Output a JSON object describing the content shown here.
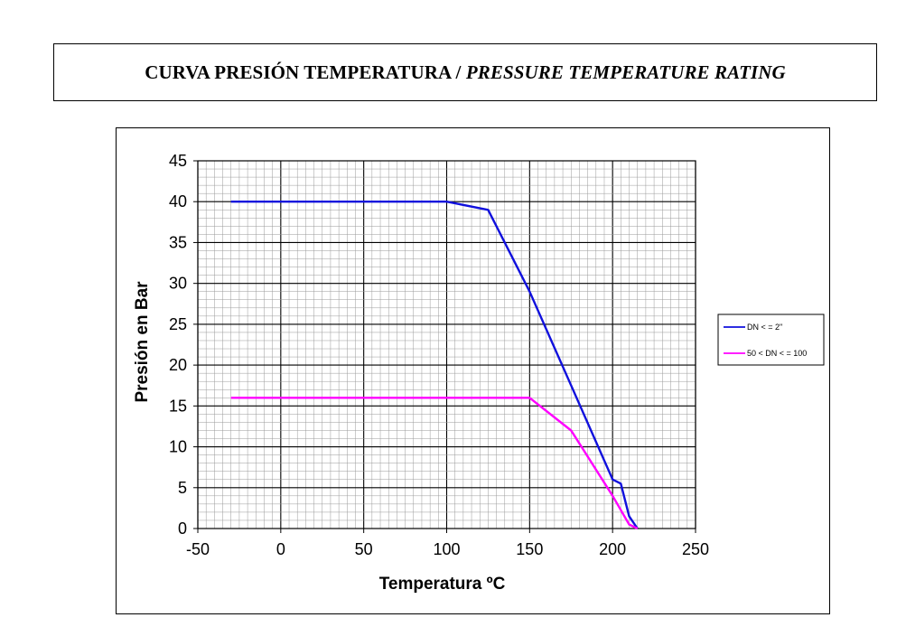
{
  "header": {
    "title_main": "CURVA PRESIÓN TEMPERATURA / ",
    "title_italic": "PRESSURE TEMPERATURE RATING"
  },
  "chart_data": {
    "type": "line",
    "xlabel": "Temperatura ºC",
    "ylabel": "Presión en Bar",
    "xlim": [
      -50,
      250
    ],
    "ylim": [
      0,
      45
    ],
    "x_ticks": [
      "-50",
      "0",
      "50",
      "100",
      "150",
      "200",
      "250"
    ],
    "y_ticks": [
      "0",
      "5",
      "10",
      "15",
      "20",
      "25",
      "30",
      "35",
      "40",
      "45"
    ],
    "grid": true,
    "legend_position": "right",
    "series": [
      {
        "name": "DN < = 2\"",
        "color": "#1010dd",
        "points": [
          [
            -30,
            40
          ],
          [
            100,
            40
          ],
          [
            125,
            39
          ],
          [
            150,
            29
          ],
          [
            175,
            17.5
          ],
          [
            200,
            6
          ],
          [
            205,
            5.5
          ],
          [
            210,
            1.5
          ],
          [
            215,
            0
          ]
        ]
      },
      {
        "name": "50 < DN < = 100",
        "color": "#ff00ff",
        "points": [
          [
            -30,
            16
          ],
          [
            150,
            16
          ],
          [
            175,
            12
          ],
          [
            200,
            4
          ],
          [
            210,
            0.5
          ],
          [
            215,
            0
          ]
        ]
      }
    ]
  }
}
